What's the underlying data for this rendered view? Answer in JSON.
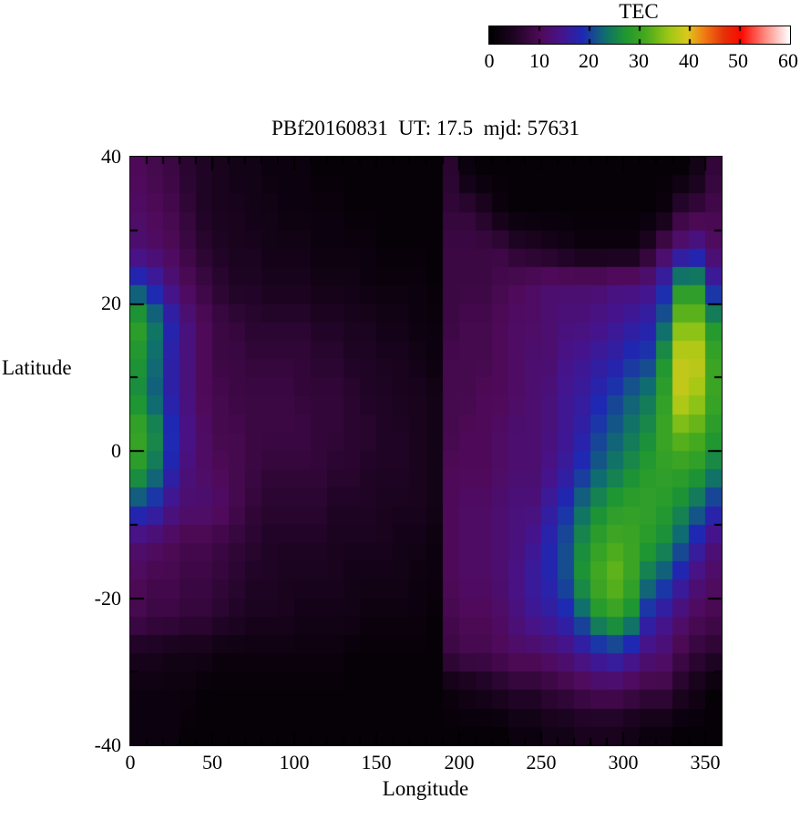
{
  "chart_data": {
    "type": "heatmap",
    "title": "PBf20160831  UT: 17.5  mjd: 57631",
    "xlabel": "Longitude",
    "ylabel": "Latitude",
    "xlim": [
      0,
      360
    ],
    "ylim": [
      -40,
      40
    ],
    "x_tick_values": [
      0,
      50,
      100,
      150,
      200,
      250,
      300,
      350
    ],
    "x_tick_labels": [
      "0",
      "50",
      "100",
      "150",
      "200",
      "250",
      "300",
      "350"
    ],
    "x_minor_step": 10,
    "y_tick_values": [
      40,
      20,
      0,
      -20,
      -40
    ],
    "y_tick_labels": [
      "40",
      "20",
      "0",
      "-20",
      "-40"
    ],
    "y_minor_step": 10,
    "grid_lon_cell_deg": 10,
    "grid_lat_cell_deg": 5,
    "lon_centers": [
      5,
      15,
      25,
      35,
      45,
      55,
      65,
      75,
      85,
      95,
      105,
      115,
      125,
      135,
      145,
      155,
      165,
      175,
      185,
      195,
      205,
      215,
      225,
      235,
      245,
      255,
      265,
      275,
      285,
      295,
      305,
      315,
      325,
      335,
      345,
      355
    ],
    "lat_centers": [
      37.5,
      32.5,
      27.5,
      22.5,
      17.5,
      12.5,
      7.5,
      2.5,
      -2.5,
      -7.5,
      -12.5,
      -17.5,
      -22.5,
      -27.5,
      -32.5,
      -37.5
    ],
    "values_by_lat_row": [
      [
        10,
        9,
        8,
        6,
        5,
        4,
        3,
        3,
        2,
        2,
        2,
        1,
        1,
        1,
        1,
        1,
        1,
        1,
        1,
        6,
        2,
        1,
        1,
        1,
        1,
        1,
        1,
        1,
        1,
        1,
        1,
        1,
        1,
        1,
        3,
        7
      ],
      [
        11,
        10,
        9,
        7,
        5,
        4,
        4,
        3,
        3,
        2,
        2,
        2,
        2,
        1,
        1,
        1,
        1,
        1,
        1,
        7,
        7,
        5,
        2,
        1,
        1,
        1,
        1,
        1,
        1,
        1,
        1,
        1,
        2,
        7,
        8,
        9
      ],
      [
        12,
        11,
        10,
        8,
        6,
        5,
        4,
        4,
        3,
        3,
        3,
        2,
        2,
        2,
        2,
        1,
        1,
        1,
        1,
        8,
        8,
        8,
        8,
        6,
        5,
        4,
        3,
        2,
        2,
        2,
        2,
        5,
        10,
        13,
        15,
        11
      ],
      [
        20,
        17,
        13,
        10,
        8,
        6,
        5,
        5,
        4,
        4,
        4,
        3,
        3,
        3,
        2,
        2,
        2,
        2,
        1,
        8,
        8,
        8,
        9,
        10,
        11,
        12,
        12,
        12,
        12,
        13,
        13,
        14,
        18,
        27,
        27,
        17
      ],
      [
        29,
        24,
        18,
        13,
        10,
        8,
        7,
        6,
        6,
        6,
        6,
        5,
        5,
        4,
        4,
        3,
        3,
        2,
        2,
        8,
        9,
        9,
        10,
        11,
        11,
        12,
        13,
        13,
        14,
        15,
        16,
        17,
        22,
        34,
        34,
        27
      ],
      [
        27,
        23,
        17,
        13,
        10,
        8,
        8,
        7,
        7,
        7,
        7,
        6,
        6,
        5,
        5,
        4,
        4,
        3,
        2,
        9,
        9,
        9,
        10,
        11,
        12,
        12,
        14,
        15,
        16,
        17,
        19,
        20,
        27,
        38,
        38,
        30
      ],
      [
        26,
        22,
        17,
        13,
        10,
        9,
        8,
        8,
        8,
        8,
        7,
        7,
        7,
        6,
        5,
        5,
        4,
        4,
        3,
        9,
        9,
        10,
        10,
        11,
        12,
        13,
        15,
        16,
        18,
        20,
        22,
        24,
        29,
        38,
        36,
        30
      ],
      [
        30,
        26,
        19,
        14,
        11,
        9,
        9,
        8,
        8,
        8,
        8,
        7,
        7,
        6,
        6,
        5,
        5,
        4,
        3,
        9,
        10,
        10,
        11,
        12,
        12,
        13,
        15,
        17,
        20,
        22,
        24,
        26,
        30,
        33,
        32,
        28
      ],
      [
        28,
        24,
        18,
        13,
        11,
        10,
        9,
        8,
        7,
        7,
        7,
        7,
        6,
        6,
        5,
        5,
        5,
        4,
        3,
        10,
        10,
        10,
        11,
        12,
        12,
        14,
        16,
        19,
        22,
        24,
        26,
        28,
        29,
        29,
        28,
        25
      ],
      [
        20,
        18,
        14,
        12,
        12,
        11,
        9,
        7,
        6,
        6,
        6,
        6,
        5,
        5,
        5,
        4,
        4,
        4,
        3,
        10,
        11,
        11,
        12,
        13,
        13,
        16,
        19,
        23,
        26,
        28,
        29,
        29,
        28,
        26,
        23,
        19
      ],
      [
        12,
        11,
        10,
        9,
        9,
        8,
        7,
        6,
        5,
        5,
        5,
        5,
        4,
        4,
        4,
        4,
        3,
        3,
        2,
        10,
        11,
        11,
        12,
        13,
        15,
        18,
        21,
        26,
        29,
        31,
        30,
        28,
        26,
        22,
        17,
        13
      ],
      [
        10,
        9,
        9,
        8,
        8,
        7,
        6,
        5,
        5,
        4,
        4,
        4,
        4,
        3,
        3,
        3,
        3,
        2,
        2,
        10,
        11,
        11,
        12,
        14,
        16,
        18,
        21,
        27,
        31,
        33,
        30,
        24,
        21,
        17,
        13,
        11
      ],
      [
        9,
        8,
        8,
        7,
        7,
        6,
        5,
        4,
        4,
        4,
        3,
        3,
        3,
        3,
        2,
        2,
        2,
        2,
        1,
        9,
        10,
        10,
        11,
        13,
        15,
        16,
        18,
        22,
        27,
        29,
        26,
        18,
        15,
        12,
        10,
        9
      ],
      [
        4,
        4,
        3,
        3,
        3,
        2,
        2,
        2,
        2,
        2,
        2,
        2,
        2,
        1,
        1,
        1,
        1,
        1,
        1,
        8,
        9,
        9,
        10,
        11,
        11,
        12,
        13,
        15,
        17,
        18,
        16,
        13,
        12,
        9,
        7,
        6
      ],
      [
        2,
        2,
        2,
        2,
        1,
        1,
        1,
        1,
        1,
        1,
        1,
        1,
        1,
        1,
        1,
        1,
        1,
        1,
        1,
        2,
        3,
        4,
        5,
        6,
        6,
        7,
        8,
        9,
        10,
        10,
        9,
        8,
        8,
        5,
        3,
        1
      ],
      [
        2,
        2,
        2,
        1,
        1,
        1,
        1,
        1,
        1,
        1,
        1,
        1,
        1,
        1,
        1,
        1,
        1,
        1,
        1,
        1,
        1,
        1,
        1,
        2,
        2,
        3,
        3,
        4,
        4,
        4,
        3,
        2,
        2,
        1,
        1,
        1
      ]
    ],
    "colorbar": {
      "label": "TEC",
      "min": 0,
      "max": 60,
      "tick_values": [
        0,
        10,
        20,
        30,
        40,
        50,
        60
      ],
      "tick_labels": [
        "0",
        "10",
        "20",
        "30",
        "40",
        "50",
        "60"
      ]
    },
    "palette_stops": [
      [
        0.0,
        "#000000"
      ],
      [
        0.08,
        "#1e0423"
      ],
      [
        0.17,
        "#500a5a"
      ],
      [
        0.24,
        "#46148c"
      ],
      [
        0.31,
        "#1e28b4"
      ],
      [
        0.385,
        "#0f6e6e"
      ],
      [
        0.45,
        "#1e9632"
      ],
      [
        0.52,
        "#46aa1e"
      ],
      [
        0.6,
        "#a0c814"
      ],
      [
        0.66,
        "#dcc81e"
      ],
      [
        0.71,
        "#f08214"
      ],
      [
        0.78,
        "#e6320a"
      ],
      [
        0.84,
        "#fa0a00"
      ],
      [
        0.92,
        "#ff8c82"
      ],
      [
        1.0,
        "#ffffff"
      ]
    ],
    "legend_position": "top-right-colorbar",
    "grid": false
  }
}
